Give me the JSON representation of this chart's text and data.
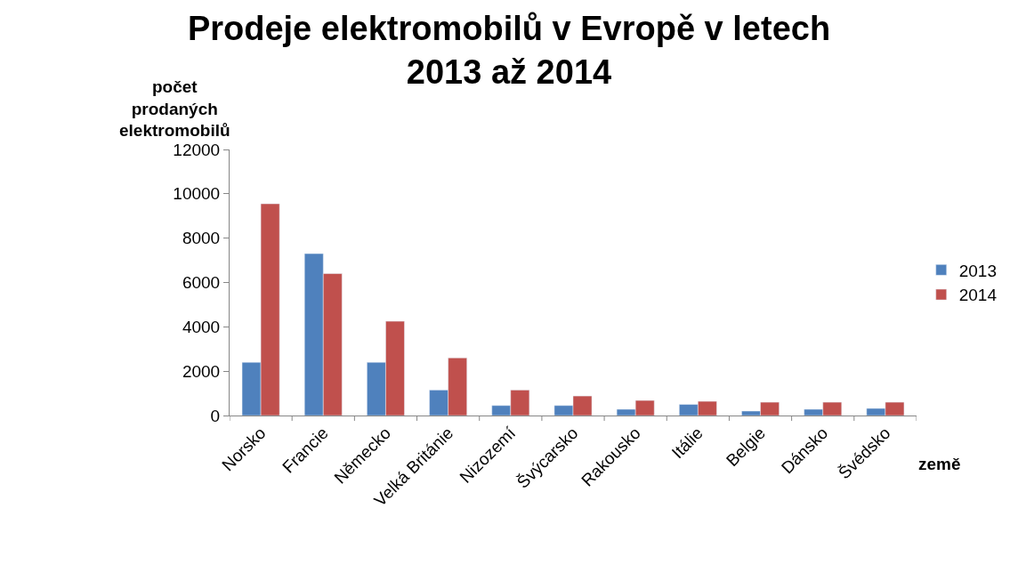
{
  "chart_data": {
    "type": "bar",
    "title": "Prodeje elektromobilů v Evropě v letech\n2013 až 2014",
    "ylabel": "počet\nprodaných\nelektromobilů",
    "xlabel": "země",
    "categories": [
      "Norsko",
      "Francie",
      "Německo",
      "Velká Británie",
      "Nizozemí",
      "Švýcarsko",
      "Rakousko",
      "Itálie",
      "Belgie",
      "Dánsko",
      "Švédsko"
    ],
    "series": [
      {
        "name": "2013",
        "color": "#4f81bd",
        "values": [
          2400,
          7300,
          2400,
          1150,
          450,
          450,
          280,
          500,
          200,
          280,
          320
        ]
      },
      {
        "name": "2014",
        "color": "#c0504d",
        "values": [
          9550,
          6400,
          4250,
          2600,
          1150,
          880,
          680,
          640,
          600,
          600,
          600
        ]
      }
    ],
    "ylim": [
      0,
      12000
    ],
    "yticks": [
      0,
      2000,
      4000,
      6000,
      8000,
      10000,
      12000
    ],
    "legend": "right"
  }
}
